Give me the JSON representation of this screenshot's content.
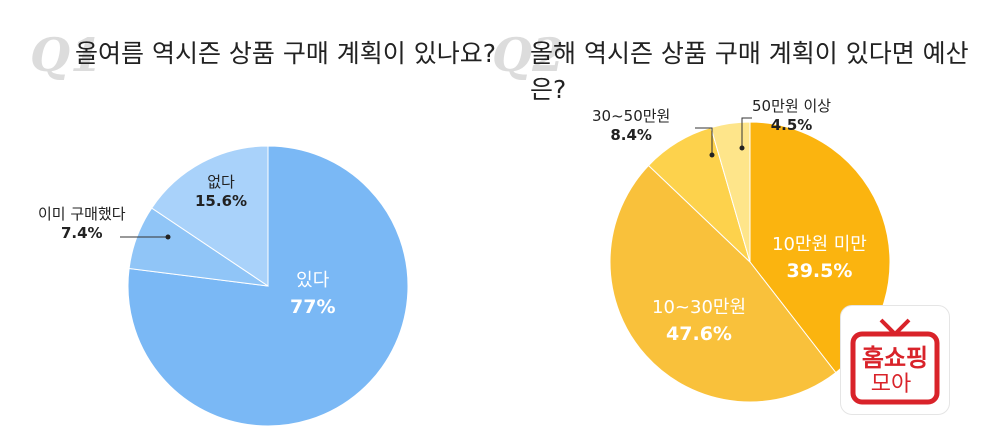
{
  "chart_data": [
    {
      "type": "pie",
      "label": "Q1",
      "title": "올여름 역시즌 상품 구매 계획이 있나요?",
      "slices": [
        {
          "name": "있다",
          "value": 77,
          "label": "77%",
          "color": "#7ab8f5"
        },
        {
          "name": "이미 구매했다",
          "value": 7.4,
          "label": "7.4%",
          "color": "#90c5f7"
        },
        {
          "name": "없다",
          "value": 15.6,
          "label": "15.6%",
          "color": "#a9d2fa"
        }
      ]
    },
    {
      "type": "pie",
      "label": "Q2",
      "title": "올해 역시즌 상품 구매 계획이 있다면 예산은?",
      "slices": [
        {
          "name": "10만원 미만",
          "value": 39.5,
          "label": "39.5%",
          "color": "#fbb40f"
        },
        {
          "name": "10~30만원",
          "value": 47.6,
          "label": "47.6%",
          "color": "#f9c13b"
        },
        {
          "name": "30~50만원",
          "value": 8.4,
          "label": "8.4%",
          "color": "#fdd24c"
        },
        {
          "name": "50만원 이상",
          "value": 4.5,
          "label": "4.5%",
          "color": "#fee58a"
        }
      ]
    }
  ],
  "logo": {
    "line1": "홈쇼핑",
    "line2": "모아",
    "color": "#d9232a"
  }
}
